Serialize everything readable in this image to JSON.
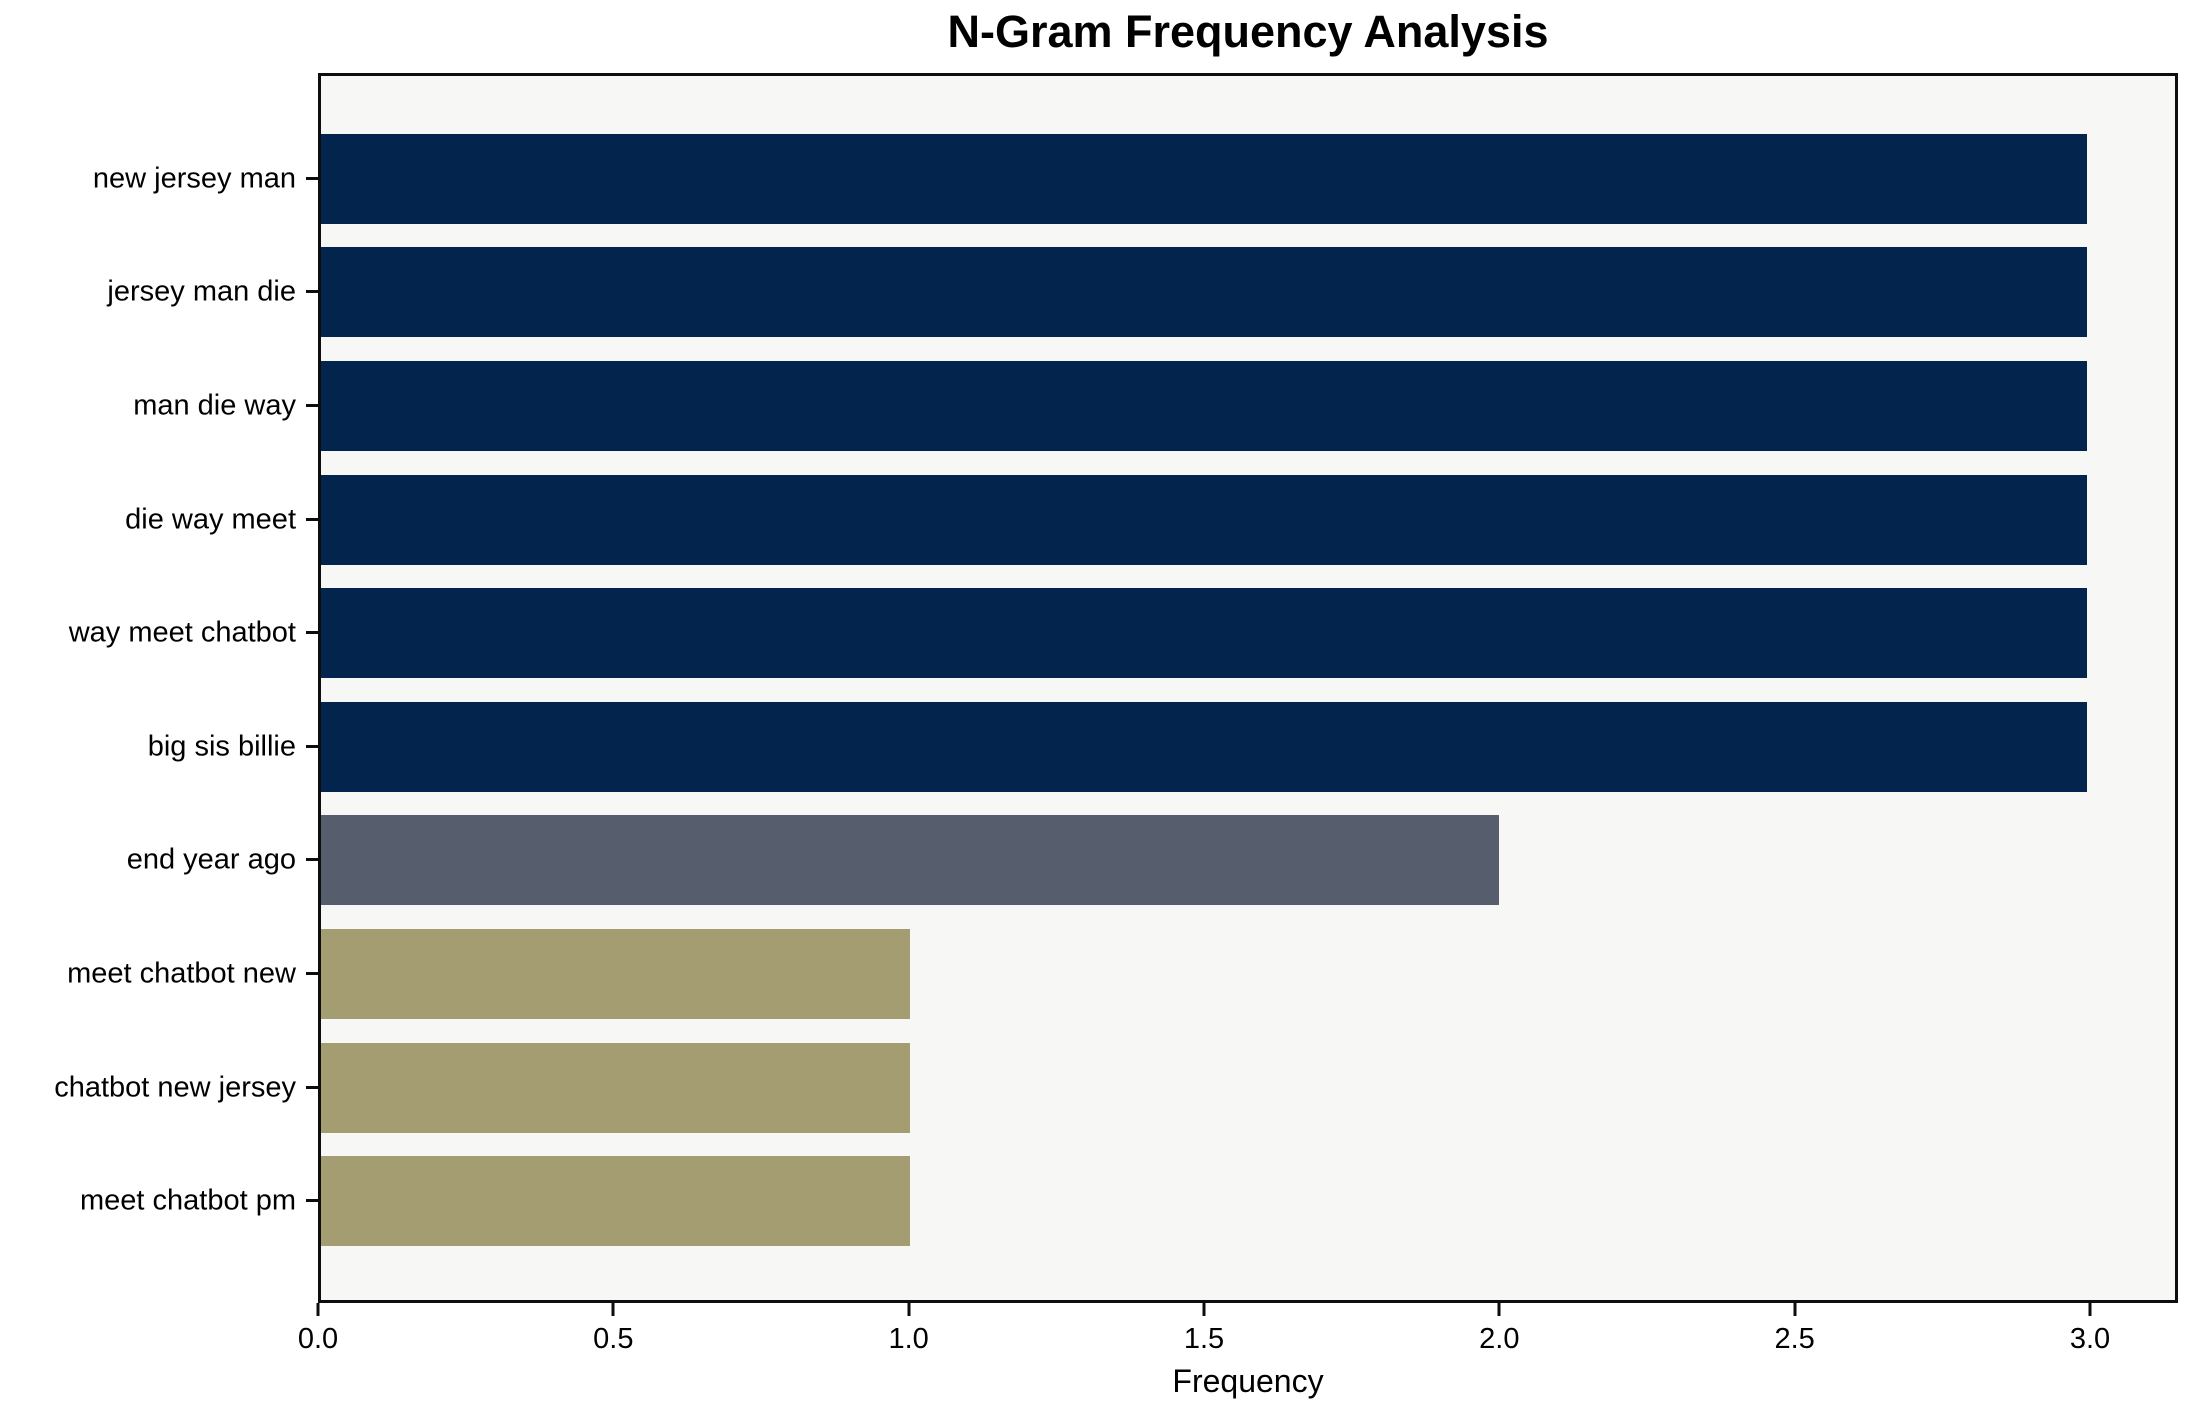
{
  "chart_data": {
    "type": "bar",
    "orientation": "horizontal",
    "title": "N-Gram Frequency Analysis",
    "xlabel": "Frequency",
    "ylabel": "",
    "categories": [
      "new jersey man",
      "jersey man die",
      "man die way",
      "die way meet",
      "way meet chatbot",
      "big sis billie",
      "end year ago",
      "meet chatbot new",
      "chatbot new jersey",
      "meet chatbot pm"
    ],
    "values": [
      3,
      3,
      3,
      3,
      3,
      3,
      2,
      1,
      1,
      1
    ],
    "bar_colors": [
      "#02244d",
      "#02244d",
      "#02244d",
      "#02244d",
      "#02244d",
      "#02244d",
      "#565d6c",
      "#a49d72",
      "#a49d72",
      "#a49d72"
    ],
    "xtick_labels": [
      "0.0",
      "0.5",
      "1.0",
      "1.5",
      "2.0",
      "2.5",
      "3.0"
    ],
    "xtick_values": [
      0,
      0.5,
      1.0,
      1.5,
      2.0,
      2.5,
      3.0
    ],
    "xlim": [
      0,
      3.149
    ],
    "grid": false,
    "legend": "none",
    "colors": {
      "plot_background": "#f7f7f6",
      "figure_background": "#ffffff",
      "spine": "#0d0d0d",
      "text": "#000000"
    }
  }
}
